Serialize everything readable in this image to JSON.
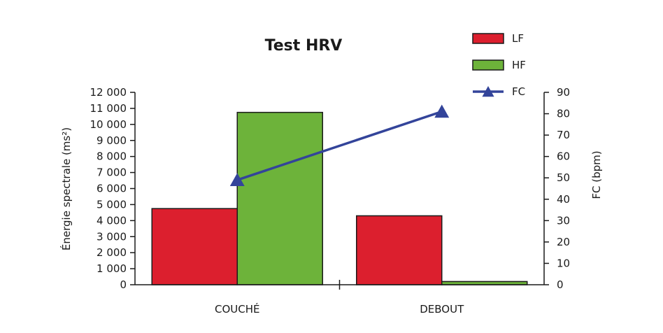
{
  "chart_data": {
    "type": "bar",
    "title": "Test HRV",
    "categories": [
      "COUCHÉ",
      "DEBOUT"
    ],
    "series": [
      {
        "name": "LF",
        "type": "bar",
        "axis": "left",
        "color": "#dc1f2e",
        "values": [
          4750,
          4300
        ]
      },
      {
        "name": "HF",
        "type": "bar",
        "axis": "left",
        "color": "#6db33a",
        "values": [
          10750,
          200
        ]
      },
      {
        "name": "FC",
        "type": "line",
        "axis": "right",
        "color": "#33449a",
        "marker": "triangle",
        "values": [
          49,
          81
        ]
      }
    ],
    "ylabel": "Énergie spectrale (ms²)",
    "ylim": [
      0,
      12000
    ],
    "yticks": [
      0,
      1000,
      2000,
      3000,
      4000,
      5000,
      6000,
      7000,
      8000,
      9000,
      10000,
      11000,
      12000
    ],
    "ytick_labels": [
      "0",
      "1 000",
      "2 000",
      "3 000",
      "4 000",
      "5 000",
      "6 000",
      "7 000",
      "8 000",
      "9 000",
      "10 000",
      "11 000",
      "12 000"
    ],
    "y2label": "FC (bpm)",
    "y2lim": [
      0,
      90
    ],
    "y2ticks": [
      0,
      10,
      20,
      30,
      40,
      50,
      60,
      70,
      80,
      90
    ],
    "y2tick_labels": [
      "0",
      "10",
      "20",
      "30",
      "40",
      "50",
      "60",
      "70",
      "80",
      "90"
    ],
    "legend_position": "top-right",
    "grid": false
  }
}
